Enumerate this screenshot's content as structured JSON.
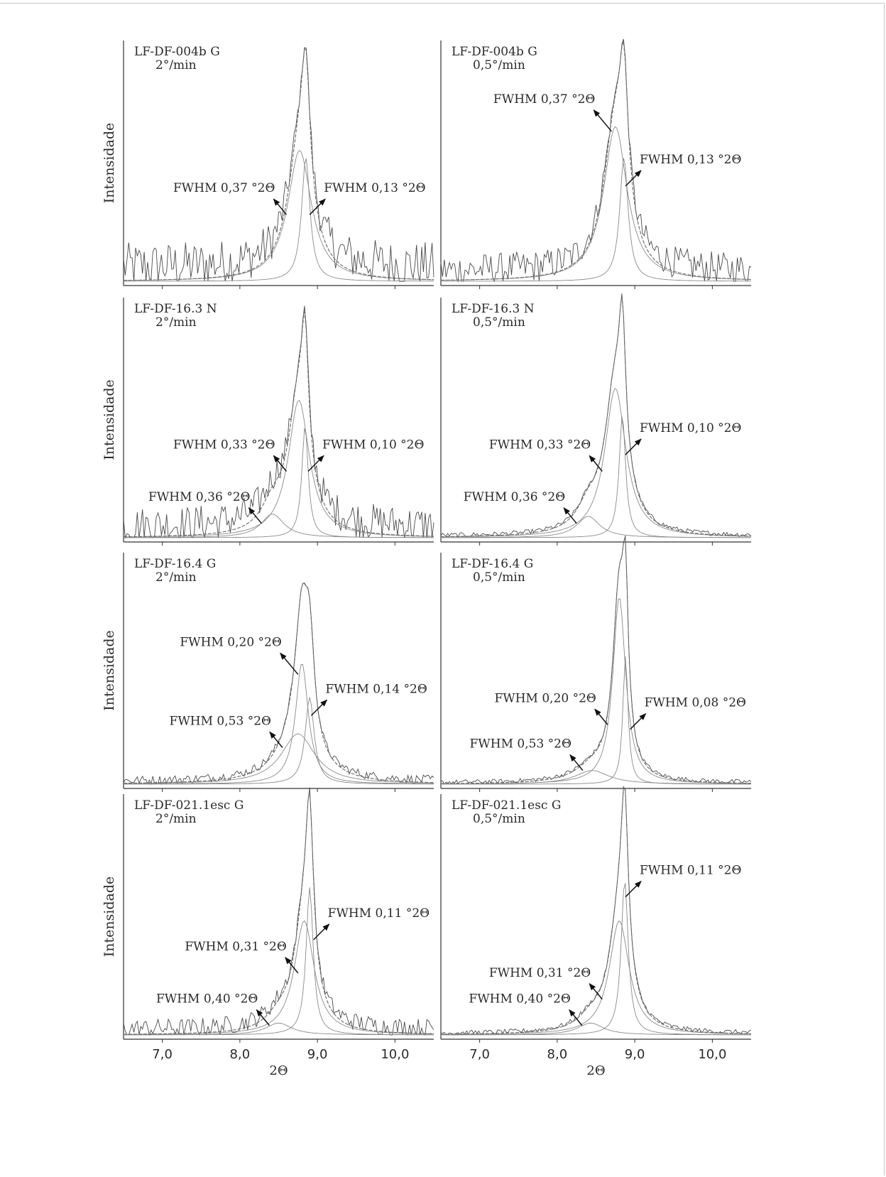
{
  "chart_data": {
    "type": "line",
    "title": "",
    "xlabel": "2Θ",
    "ylabel": "Intensidade",
    "xlim": [
      6.5,
      10.5
    ],
    "x_ticks": [
      "7,0",
      "8,0",
      "9,0",
      "10,0"
    ],
    "x_tick_values": [
      7.0,
      8.0,
      9.0,
      10.0
    ],
    "grid": false,
    "colors": {
      "data": "#4a4a4a",
      "fit": "#6a6a6a",
      "components": "#8a8a8a",
      "axis": "#333333",
      "arrow": "#111111"
    },
    "panels": [
      {
        "sample": "LF-DF-004b G",
        "rate": "2°/min",
        "noise": 0.1,
        "baseline": 0.0,
        "components": [
          {
            "center": 8.77,
            "fwhm": 0.37,
            "height": 0.55
          },
          {
            "center": 8.85,
            "fwhm": 0.13,
            "height": 0.52
          }
        ],
        "annotations": [
          {
            "text": "FWHM 0,37 °2Θ",
            "x": 8.6,
            "y": 0.28,
            "side": "left"
          },
          {
            "text": "FWHM 0,13 °2Θ",
            "x": 8.9,
            "y": 0.28,
            "side": "right"
          }
        ]
      },
      {
        "sample": "LF-DF-004b G",
        "rate": "0,5°/min",
        "noise": 0.07,
        "baseline": 0.0,
        "components": [
          {
            "center": 8.75,
            "fwhm": 0.37,
            "height": 0.65
          },
          {
            "center": 8.86,
            "fwhm": 0.13,
            "height": 0.52
          }
        ],
        "annotations": [
          {
            "text": "FWHM 0,37 °2Θ",
            "x": 8.7,
            "y": 0.63,
            "side": "left-high"
          },
          {
            "text": "FWHM 0,13 °2Θ",
            "x": 8.88,
            "y": 0.4,
            "side": "right-high"
          }
        ]
      },
      {
        "sample": "LF-DF-16.3 N",
        "rate": "2°/min",
        "noise": 0.08,
        "baseline": 0.0,
        "components": [
          {
            "center": 8.42,
            "fwhm": 0.36,
            "height": 0.1
          },
          {
            "center": 8.76,
            "fwhm": 0.33,
            "height": 0.58
          },
          {
            "center": 8.84,
            "fwhm": 0.1,
            "height": 0.47
          }
        ],
        "annotations": [
          {
            "text": "FWHM 0,36 °2Θ",
            "x": 8.28,
            "y": 0.06,
            "side": "left"
          },
          {
            "text": "FWHM 0,33 °2Θ",
            "x": 8.6,
            "y": 0.28,
            "side": "left"
          },
          {
            "text": "FWHM 0,10 °2Θ",
            "x": 8.88,
            "y": 0.28,
            "side": "right"
          }
        ]
      },
      {
        "sample": "LF-DF-16.3 N",
        "rate": "0,5°/min",
        "noise": 0.01,
        "baseline": 0.0,
        "components": [
          {
            "center": 8.4,
            "fwhm": 0.36,
            "height": 0.09
          },
          {
            "center": 8.75,
            "fwhm": 0.33,
            "height": 0.63
          },
          {
            "center": 8.84,
            "fwhm": 0.1,
            "height": 0.52
          }
        ],
        "annotations": [
          {
            "text": "FWHM 0,36 °2Θ",
            "x": 8.25,
            "y": 0.06,
            "side": "left"
          },
          {
            "text": "FWHM 0,33 °2Θ",
            "x": 8.58,
            "y": 0.28,
            "side": "left"
          },
          {
            "text": "FWHM 0,10 °2Θ",
            "x": 8.88,
            "y": 0.35,
            "side": "right"
          }
        ]
      },
      {
        "sample": "LF-DF-16.4 G",
        "rate": "2°/min",
        "noise": 0.02,
        "baseline": 0.0,
        "components": [
          {
            "center": 8.75,
            "fwhm": 0.53,
            "height": 0.22
          },
          {
            "center": 8.8,
            "fwhm": 0.2,
            "height": 0.53
          },
          {
            "center": 8.9,
            "fwhm": 0.14,
            "height": 0.38
          }
        ],
        "annotations": [
          {
            "text": "FWHM 0,53 °2Θ",
            "x": 8.55,
            "y": 0.16,
            "side": "left"
          },
          {
            "text": "FWHM 0,20 °2Θ",
            "x": 8.75,
            "y": 0.48,
            "side": "left-high"
          },
          {
            "text": "FWHM 0,14 °2Θ",
            "x": 8.92,
            "y": 0.3,
            "side": "right"
          }
        ]
      },
      {
        "sample": "LF-DF-16.4 G",
        "rate": "0,5°/min",
        "noise": 0.01,
        "baseline": 0.0,
        "components": [
          {
            "center": 8.45,
            "fwhm": 0.53,
            "height": 0.06
          },
          {
            "center": 8.8,
            "fwhm": 0.2,
            "height": 0.82
          },
          {
            "center": 8.88,
            "fwhm": 0.08,
            "height": 0.56
          }
        ],
        "annotations": [
          {
            "text": "FWHM 0,53 °2Θ",
            "x": 8.33,
            "y": 0.06,
            "side": "left"
          },
          {
            "text": "FWHM 0,20 °2Θ",
            "x": 8.65,
            "y": 0.26,
            "side": "left"
          },
          {
            "text": "FWHM 0,08 °2Θ",
            "x": 8.94,
            "y": 0.24,
            "side": "right"
          }
        ]
      },
      {
        "sample": "LF-DF-021.1esc G",
        "rate": "2°/min",
        "noise": 0.04,
        "baseline": 0.0,
        "components": [
          {
            "center": 8.5,
            "fwhm": 0.4,
            "height": 0.05
          },
          {
            "center": 8.83,
            "fwhm": 0.31,
            "height": 0.48
          },
          {
            "center": 8.9,
            "fwhm": 0.11,
            "height": 0.62
          }
        ],
        "annotations": [
          {
            "text": "FWHM 0,40 °2Θ",
            "x": 8.38,
            "y": 0.04,
            "side": "left"
          },
          {
            "text": "FWHM 0,31 °2Θ",
            "x": 8.75,
            "y": 0.26,
            "side": "left"
          },
          {
            "text": "FWHM 0,11 °2Θ",
            "x": 8.95,
            "y": 0.4,
            "side": "right"
          }
        ]
      },
      {
        "sample": "LF-DF-021.1esc G",
        "rate": "0,5°/min",
        "noise": 0.01,
        "baseline": 0.0,
        "components": [
          {
            "center": 8.43,
            "fwhm": 0.4,
            "height": 0.05
          },
          {
            "center": 8.8,
            "fwhm": 0.31,
            "height": 0.48
          },
          {
            "center": 8.87,
            "fwhm": 0.11,
            "height": 0.65
          }
        ],
        "annotations": [
          {
            "text": "FWHM 0,40 °2Θ",
            "x": 8.32,
            "y": 0.04,
            "side": "left"
          },
          {
            "text": "FWHM 0,31 °2Θ",
            "x": 8.58,
            "y": 0.15,
            "side": "left"
          },
          {
            "text": "FWHM 0,11 °2Θ",
            "x": 8.88,
            "y": 0.58,
            "side": "right"
          }
        ]
      }
    ]
  }
}
